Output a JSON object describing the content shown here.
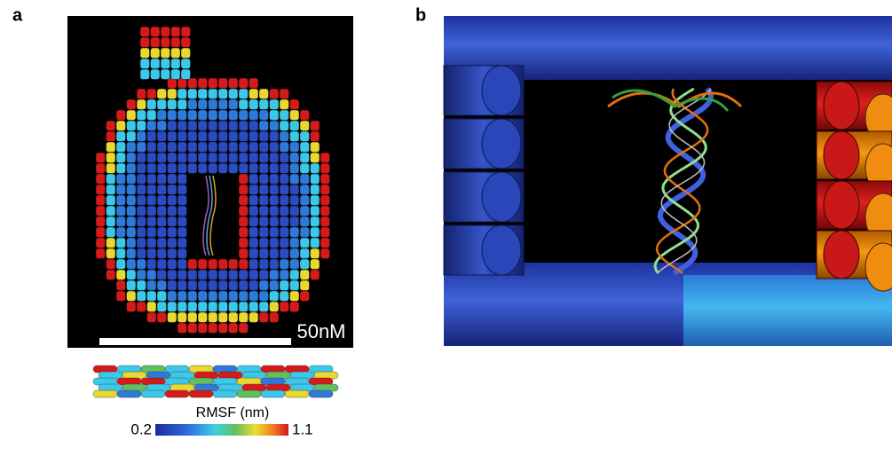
{
  "panels": [
    {
      "label": "a",
      "scale_bar": "50nM",
      "colorbar": {
        "title": "RMSF (nm)",
        "min": "0.2",
        "max": "1.1"
      }
    },
    {
      "label": "b"
    }
  ]
}
